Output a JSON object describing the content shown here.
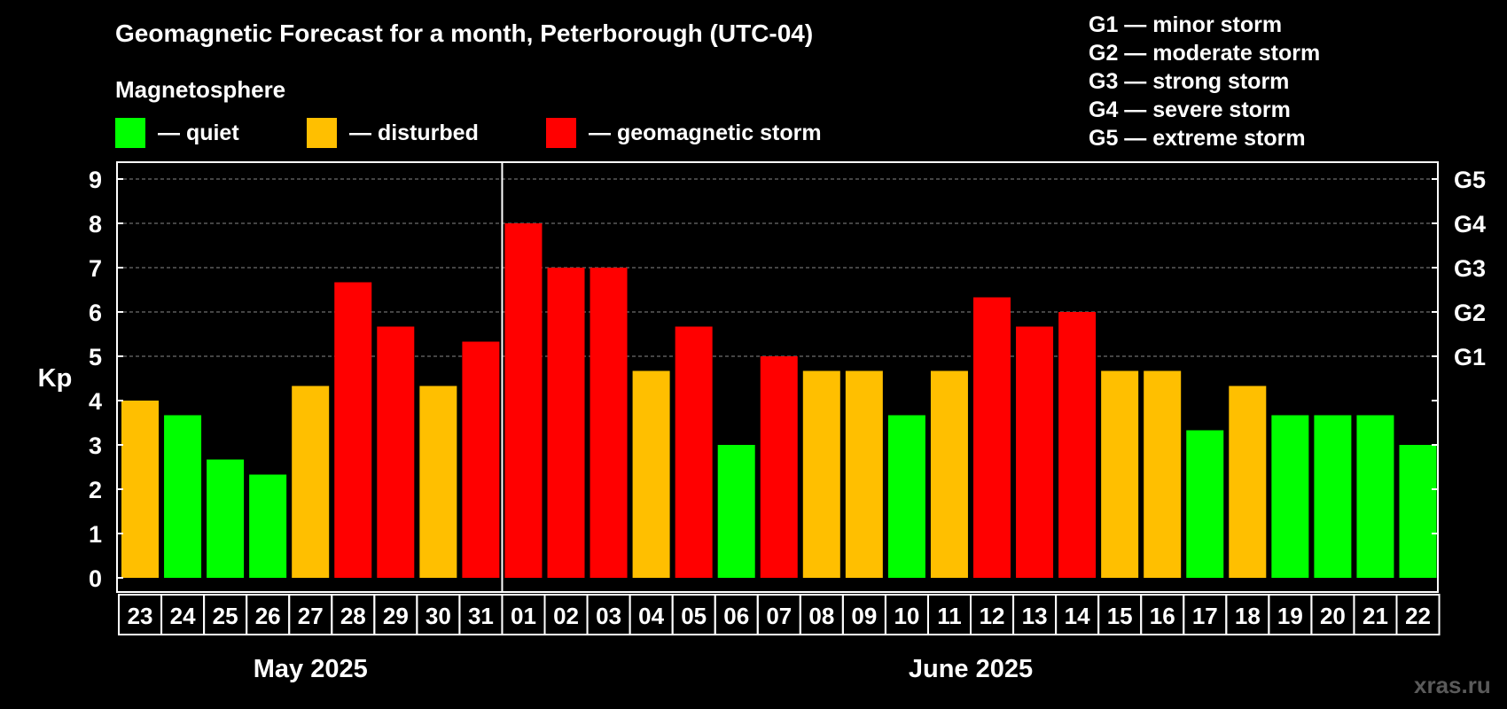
{
  "title": "Geomagnetic Forecast for a month, Peterborough (UTC-04)",
  "subtitle": "Magnetosphere",
  "legend": {
    "quiet": "— quiet",
    "disturbed": "— disturbed",
    "storm": "— geomagnetic storm"
  },
  "storm_levels": [
    "G1 — minor storm",
    "G2 — moderate storm",
    "G3 — strong storm",
    "G4 — severe storm",
    "G5 — extreme storm"
  ],
  "watermark": "xras.ru",
  "colors": {
    "quiet": "#00ff00",
    "disturbed": "#ffbf00",
    "storm": "#ff0000",
    "background": "#000000",
    "grid": "#888888"
  },
  "chart_data": {
    "type": "bar",
    "ylabel": "Kp",
    "ylim": [
      0,
      9
    ],
    "yticks": [
      "0",
      "1",
      "2",
      "3",
      "4",
      "5",
      "6",
      "7",
      "8",
      "9"
    ],
    "right_ticks": [
      {
        "value": 5,
        "label": "G1"
      },
      {
        "value": 6,
        "label": "G2"
      },
      {
        "value": 7,
        "label": "G3"
      },
      {
        "value": 8,
        "label": "G4"
      },
      {
        "value": 9,
        "label": "G5"
      }
    ],
    "grid": true,
    "categories": [
      "23",
      "24",
      "25",
      "26",
      "27",
      "28",
      "29",
      "30",
      "31",
      "01",
      "02",
      "03",
      "04",
      "05",
      "06",
      "07",
      "08",
      "09",
      "10",
      "11",
      "12",
      "13",
      "14",
      "15",
      "16",
      "17",
      "18",
      "19",
      "20",
      "21",
      "22"
    ],
    "values": [
      4,
      3.67,
      2.67,
      2.33,
      4.33,
      6.67,
      5.67,
      4.33,
      5.33,
      8,
      7,
      7,
      4.67,
      5.67,
      3,
      5,
      4.67,
      4.67,
      3.67,
      4.67,
      6.33,
      5.67,
      6,
      4.67,
      4.67,
      3.33,
      4.33,
      3.67,
      3.67,
      3.67,
      3
    ],
    "status": [
      "disturbed",
      "quiet",
      "quiet",
      "quiet",
      "disturbed",
      "storm",
      "storm",
      "disturbed",
      "storm",
      "storm",
      "storm",
      "storm",
      "disturbed",
      "storm",
      "quiet",
      "storm",
      "disturbed",
      "disturbed",
      "quiet",
      "disturbed",
      "storm",
      "storm",
      "storm",
      "disturbed",
      "disturbed",
      "quiet",
      "disturbed",
      "quiet",
      "quiet",
      "quiet",
      "quiet"
    ],
    "months": [
      {
        "label": "May 2025",
        "start_index": 0,
        "count": 9
      },
      {
        "label": "June 2025",
        "start_index": 9,
        "count": 22
      }
    ]
  }
}
